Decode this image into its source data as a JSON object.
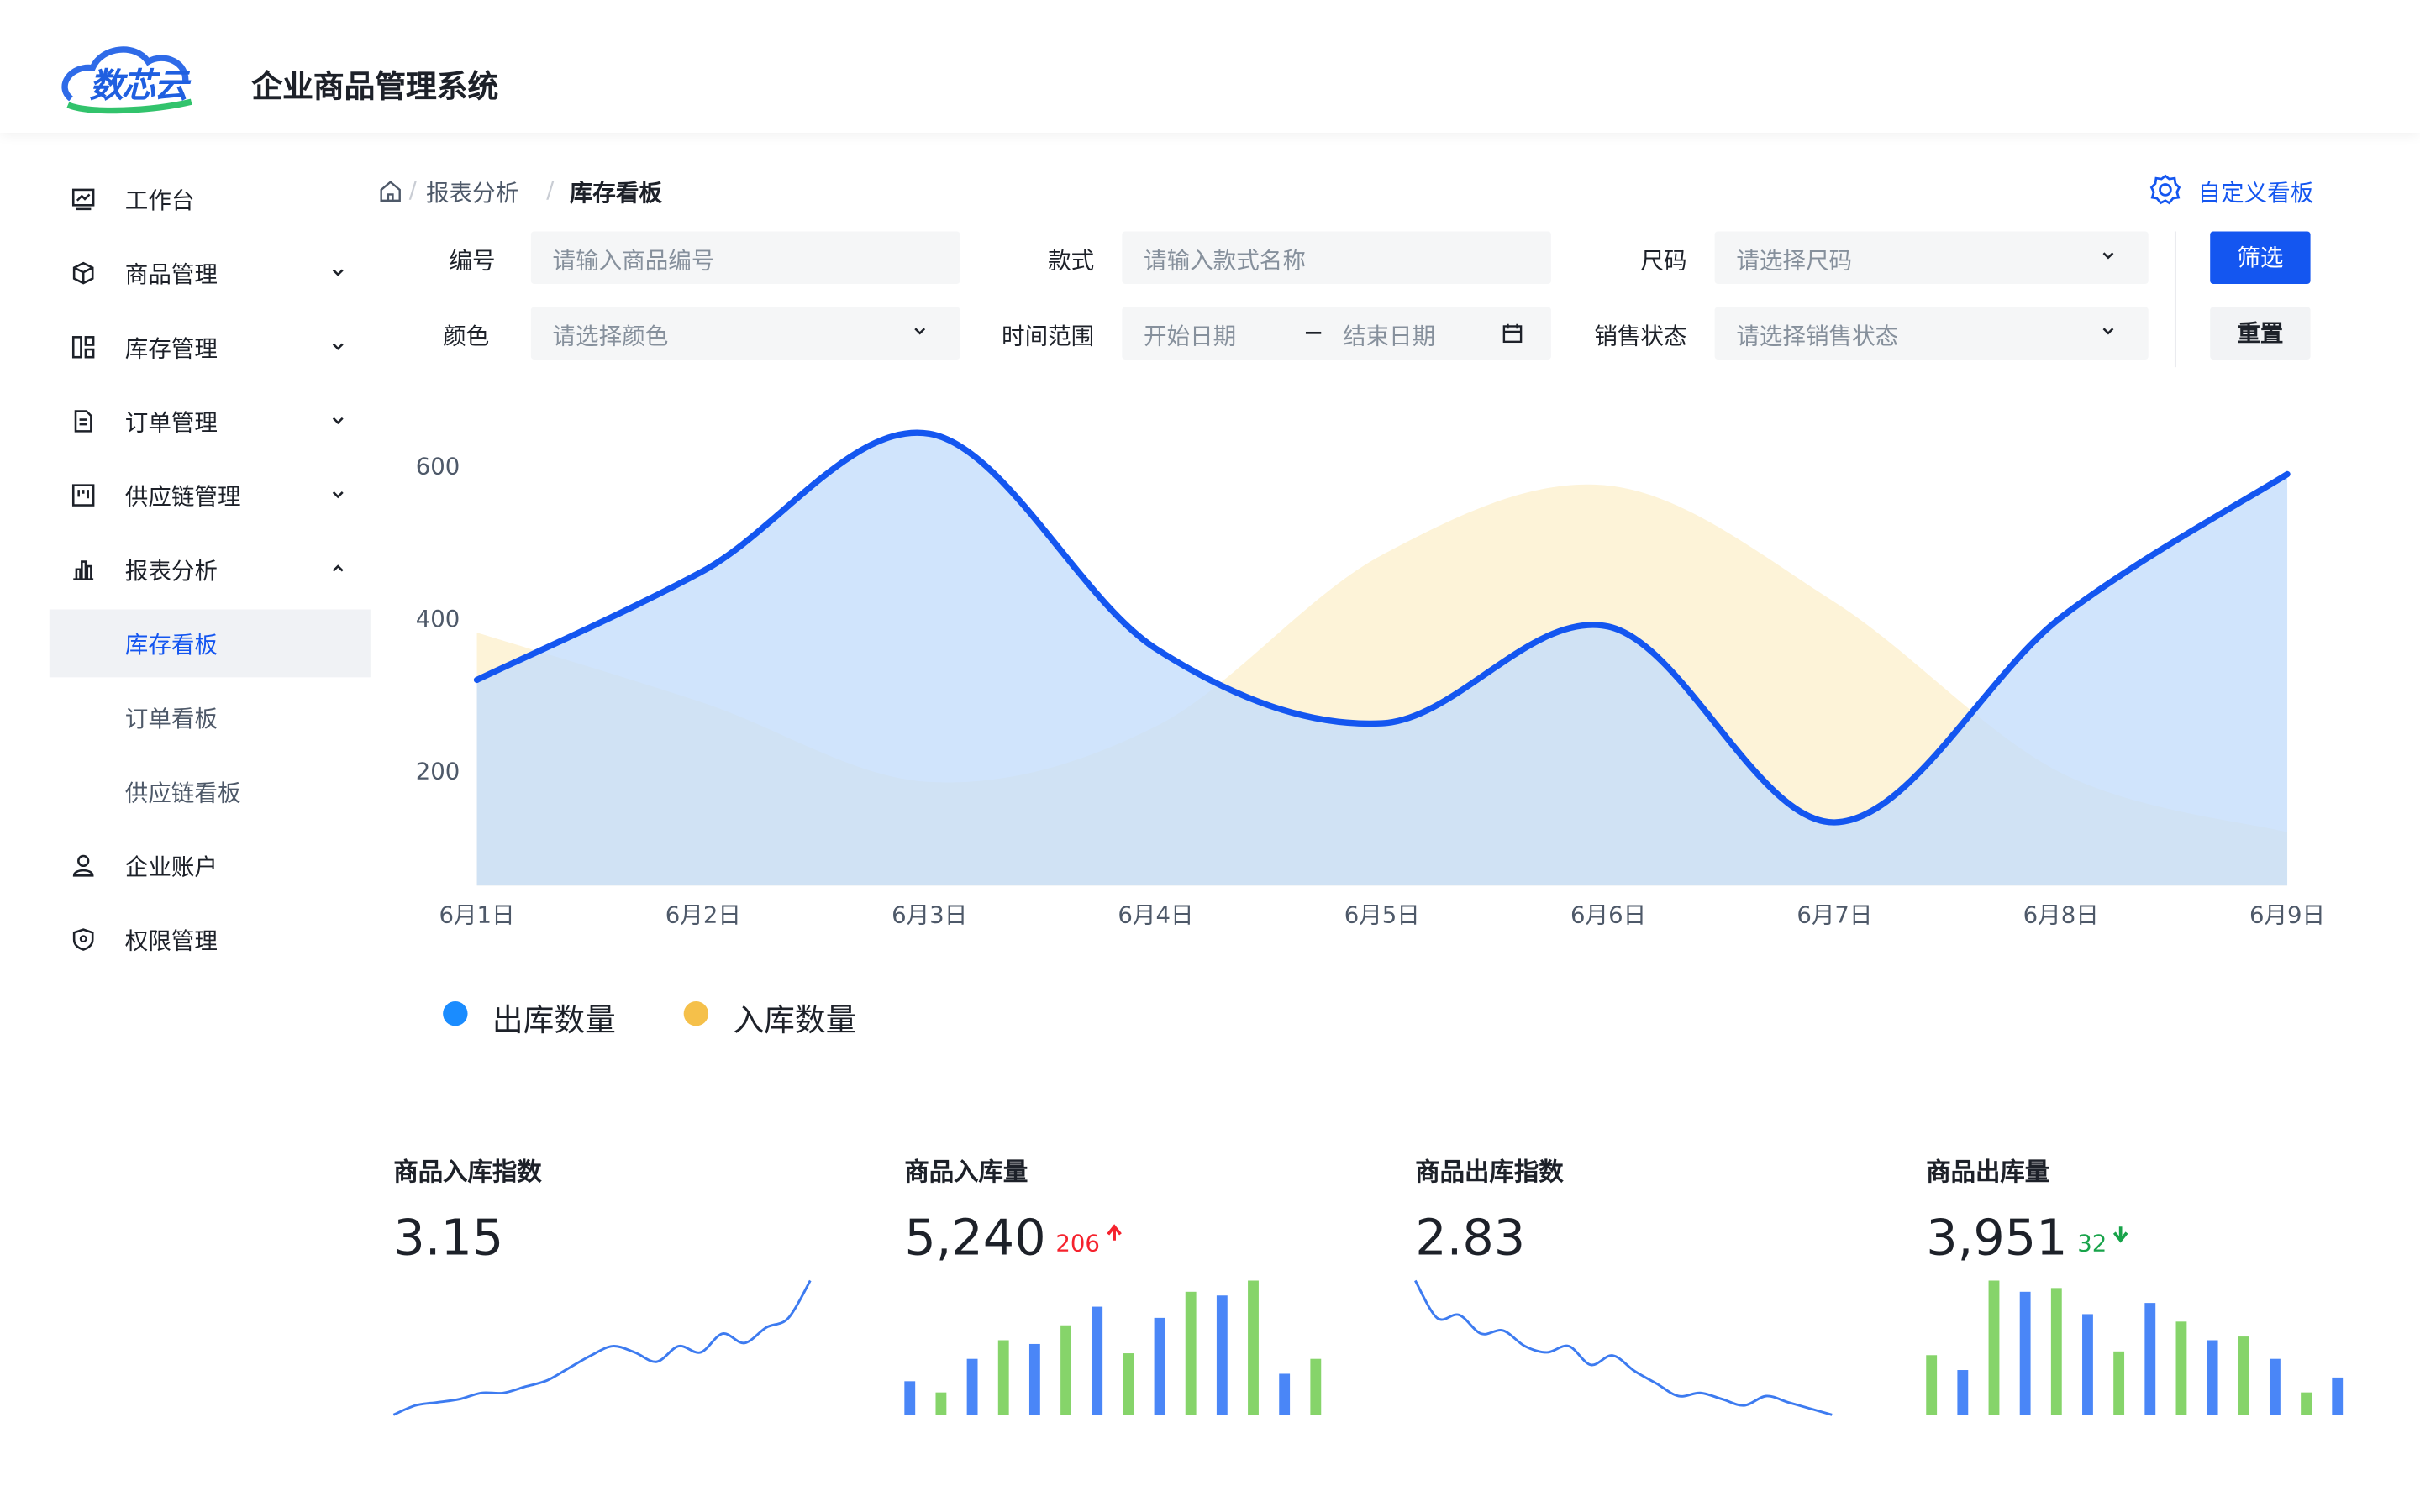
{
  "header": {
    "logo": "数芯云",
    "title": "企业商品管理系统"
  },
  "sidebar": {
    "items": [
      "工作台",
      "商品管理",
      "库存管理",
      "订单管理",
      "供应链管理",
      "报表分析",
      "库存看板",
      "订单看板",
      "供应链看板",
      "企业账户",
      "权限管理"
    ]
  },
  "breadcrumb": {
    "items": [
      "报表分析",
      "库存看板"
    ],
    "action": "自定义看板"
  },
  "filters": {
    "fields": [
      {
        "label": "编号",
        "placeholder": "请输入商品编号"
      },
      {
        "label": "款式",
        "placeholder": "请输入款式名称"
      },
      {
        "label": "尺码",
        "placeholder": "请选择尺码"
      },
      {
        "label": "颜色",
        "placeholder": "请选择颜色"
      },
      {
        "label": "时间范围",
        "start": "开始日期",
        "end": "结束日期"
      },
      {
        "label": "销售状态",
        "placeholder": "请选择销售状态"
      }
    ],
    "buttons": [
      "筛选",
      "重置"
    ]
  },
  "chart_data": {
    "type": "area",
    "categories": [
      "6月1日",
      "6月2日",
      "6月3日",
      "6月4日",
      "6月5日",
      "6月6日",
      "6月7日",
      "6月8日",
      "6月9日"
    ],
    "series": [
      {
        "name": "出库数量",
        "color": "#1a8cff",
        "line_color": "#1456f0",
        "fill": "#c4ddfb",
        "values": [
          320,
          463,
          643,
          361,
          263,
          390,
          133,
          402,
          590
        ]
      },
      {
        "name": "入库数量",
        "color": "#f5c04a",
        "fill": "#fdf3d8",
        "values": [
          382,
          290,
          186,
          259,
          484,
          575,
          422,
          198,
          120
        ]
      }
    ],
    "ylim": [
      50,
      700
    ],
    "yticks": [
      200,
      400,
      600
    ],
    "grid": false
  },
  "kpis": [
    {
      "title": "商品入库指数",
      "value": "3.15",
      "spark": {
        "type": "line",
        "color": "#3d7bf0",
        "values": [
          0,
          6,
          8,
          10,
          14,
          14,
          18,
          22,
          30,
          38,
          44,
          40,
          34,
          44,
          40,
          52,
          46,
          56,
          62,
          86
        ]
      }
    },
    {
      "title": "商品入库量",
      "value": "5,240",
      "delta": 206,
      "trend": "up",
      "trend_color": "#f5222d",
      "spark": {
        "type": "bar",
        "colors": [
          "#4a86f7",
          "#86d46a"
        ],
        "values": [
          18,
          12,
          30,
          40,
          38,
          48,
          58,
          33,
          52,
          66,
          64,
          72,
          22,
          30
        ]
      }
    },
    {
      "title": "商品出库指数",
      "value": "2.83",
      "spark": {
        "type": "line",
        "color": "#3d7bf0",
        "values": [
          86,
          62,
          64,
          52,
          54,
          44,
          40,
          44,
          32,
          38,
          28,
          20,
          12,
          14,
          10,
          6,
          12,
          8,
          4,
          0
        ]
      }
    },
    {
      "title": "商品出库量",
      "value": "3,951",
      "delta": 32,
      "trend": "down",
      "trend_color": "#18a34a",
      "spark": {
        "type": "bar",
        "colors": [
          "#86d46a",
          "#4a86f7"
        ],
        "values": [
          32,
          24,
          72,
          66,
          68,
          54,
          34,
          60,
          50,
          40,
          42,
          30,
          12,
          20
        ]
      }
    }
  ]
}
